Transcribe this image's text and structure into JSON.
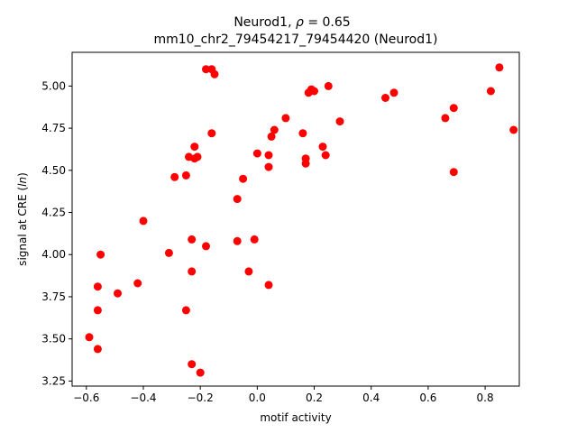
{
  "chart_data": {
    "type": "scatter",
    "title_line1_prefix": "Neurod1, ",
    "title_rho_symbol": "ρ",
    "title_rho_value": " = 0.65",
    "title_line2": "mm10_chr2_79454217_79454420 (Neurod1)",
    "xlabel": "motif activity",
    "ylabel_prefix": "signal at CRE (",
    "ylabel_italic": "ln",
    "ylabel_suffix": ")",
    "xlim": [
      -0.65,
      0.92
    ],
    "ylim": [
      3.22,
      5.2
    ],
    "xticks": [
      -0.6,
      -0.4,
      -0.2,
      0.0,
      0.2,
      0.4,
      0.6,
      0.8
    ],
    "xtick_labels": [
      "−0.6",
      "−0.4",
      "−0.2",
      "0.0",
      "0.2",
      "0.4",
      "0.6",
      "0.8"
    ],
    "yticks": [
      3.25,
      3.5,
      3.75,
      4.0,
      4.25,
      4.5,
      4.75,
      5.0
    ],
    "ytick_labels": [
      "3.25",
      "3.50",
      "3.75",
      "4.00",
      "4.25",
      "4.50",
      "4.75",
      "5.00"
    ],
    "marker_color": "#ff0000",
    "grid": false,
    "points": [
      {
        "x": -0.59,
        "y": 3.51
      },
      {
        "x": -0.56,
        "y": 3.44
      },
      {
        "x": -0.56,
        "y": 3.67
      },
      {
        "x": -0.56,
        "y": 3.81
      },
      {
        "x": -0.55,
        "y": 4.0
      },
      {
        "x": -0.49,
        "y": 3.77
      },
      {
        "x": -0.42,
        "y": 3.83
      },
      {
        "x": -0.4,
        "y": 4.2
      },
      {
        "x": -0.31,
        "y": 4.01
      },
      {
        "x": -0.29,
        "y": 4.46
      },
      {
        "x": -0.25,
        "y": 4.47
      },
      {
        "x": -0.25,
        "y": 3.67
      },
      {
        "x": -0.24,
        "y": 4.58
      },
      {
        "x": -0.23,
        "y": 4.09
      },
      {
        "x": -0.23,
        "y": 3.9
      },
      {
        "x": -0.23,
        "y": 3.35
      },
      {
        "x": -0.22,
        "y": 4.57
      },
      {
        "x": -0.22,
        "y": 4.64
      },
      {
        "x": -0.21,
        "y": 4.58
      },
      {
        "x": -0.2,
        "y": 3.3
      },
      {
        "x": -0.18,
        "y": 5.1
      },
      {
        "x": -0.18,
        "y": 4.05
      },
      {
        "x": -0.16,
        "y": 5.1
      },
      {
        "x": -0.16,
        "y": 4.72
      },
      {
        "x": -0.15,
        "y": 5.07
      },
      {
        "x": -0.07,
        "y": 4.33
      },
      {
        "x": -0.07,
        "y": 4.08
      },
      {
        "x": -0.05,
        "y": 4.45
      },
      {
        "x": -0.03,
        "y": 3.9
      },
      {
        "x": -0.01,
        "y": 4.09
      },
      {
        "x": 0.0,
        "y": 4.6
      },
      {
        "x": 0.04,
        "y": 4.52
      },
      {
        "x": 0.04,
        "y": 4.59
      },
      {
        "x": 0.04,
        "y": 3.82
      },
      {
        "x": 0.05,
        "y": 4.7
      },
      {
        "x": 0.06,
        "y": 4.74
      },
      {
        "x": 0.1,
        "y": 4.81
      },
      {
        "x": 0.16,
        "y": 4.72
      },
      {
        "x": 0.17,
        "y": 4.54
      },
      {
        "x": 0.17,
        "y": 4.57
      },
      {
        "x": 0.18,
        "y": 4.96
      },
      {
        "x": 0.19,
        "y": 4.98
      },
      {
        "x": 0.2,
        "y": 4.97
      },
      {
        "x": 0.23,
        "y": 4.64
      },
      {
        "x": 0.24,
        "y": 4.59
      },
      {
        "x": 0.25,
        "y": 5.0
      },
      {
        "x": 0.29,
        "y": 4.79
      },
      {
        "x": 0.45,
        "y": 4.93
      },
      {
        "x": 0.48,
        "y": 4.96
      },
      {
        "x": 0.66,
        "y": 4.81
      },
      {
        "x": 0.69,
        "y": 4.87
      },
      {
        "x": 0.69,
        "y": 4.49
      },
      {
        "x": 0.82,
        "y": 4.97
      },
      {
        "x": 0.85,
        "y": 5.11
      },
      {
        "x": 0.9,
        "y": 4.74
      }
    ]
  }
}
